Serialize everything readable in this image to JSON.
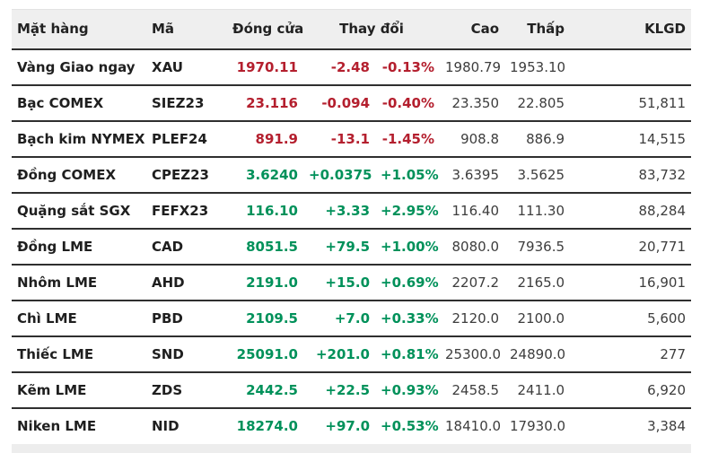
{
  "chart_data": {
    "type": "table",
    "header": {
      "name": "Mặt hàng",
      "code": "Mã",
      "close": "Đóng cửa",
      "change": "Thay đổi",
      "high": "Cao",
      "low": "Thấp",
      "volume": "KLGD"
    },
    "rows": [
      {
        "name": "Vàng Giao ngay",
        "code": "XAU",
        "close": "1970.11",
        "change": "-2.48",
        "change_pct": "-0.13%",
        "high": "1980.79",
        "low": "1953.10",
        "volume": "",
        "direction": "down"
      },
      {
        "name": "Bạc COMEX",
        "code": "SIEZ23",
        "close": "23.116",
        "change": "-0.094",
        "change_pct": "-0.40%",
        "high": "23.350",
        "low": "22.805",
        "volume": "51,811",
        "direction": "down"
      },
      {
        "name": "Bạch kim NYMEX",
        "code": "PLEF24",
        "close": "891.9",
        "change": "-13.1",
        "change_pct": "-1.45%",
        "high": "908.8",
        "low": "886.9",
        "volume": "14,515",
        "direction": "down"
      },
      {
        "name": "Đồng COMEX",
        "code": "CPEZ23",
        "close": "3.6240",
        "change": "+0.0375",
        "change_pct": "+1.05%",
        "high": "3.6395",
        "low": "3.5625",
        "volume": "83,732",
        "direction": "up"
      },
      {
        "name": "Quặng sắt SGX",
        "code": "FEFX23",
        "close": "116.10",
        "change": "+3.33",
        "change_pct": "+2.95%",
        "high": "116.40",
        "low": "111.30",
        "volume": "88,284",
        "direction": "up"
      },
      {
        "name": "Đồng LME",
        "code": "CAD",
        "close": "8051.5",
        "change": "+79.5",
        "change_pct": "+1.00%",
        "high": "8080.0",
        "low": "7936.5",
        "volume": "20,771",
        "direction": "up"
      },
      {
        "name": "Nhôm LME",
        "code": "AHD",
        "close": "2191.0",
        "change": "+15.0",
        "change_pct": "+0.69%",
        "high": "2207.2",
        "low": "2165.0",
        "volume": "16,901",
        "direction": "up"
      },
      {
        "name": "Chì LME",
        "code": "PBD",
        "close": "2109.5",
        "change": "+7.0",
        "change_pct": "+0.33%",
        "high": "2120.0",
        "low": "2100.0",
        "volume": "5,600",
        "direction": "up"
      },
      {
        "name": "Thiếc LME",
        "code": "SND",
        "close": "25091.0",
        "change": "+201.0",
        "change_pct": "+0.81%",
        "high": "25300.0",
        "low": "24890.0",
        "volume": "277",
        "direction": "up"
      },
      {
        "name": "Kẽm LME",
        "code": "ZDS",
        "close": "2442.5",
        "change": "+22.5",
        "change_pct": "+0.93%",
        "high": "2458.5",
        "low": "2411.0",
        "volume": "6,920",
        "direction": "up"
      },
      {
        "name": "Niken LME",
        "code": "NID",
        "close": "18274.0",
        "change": "+97.0",
        "change_pct": "+0.53%",
        "high": "18410.0",
        "low": "17930.0",
        "volume": "3,384",
        "direction": "up"
      }
    ],
    "layout": {
      "grid": "horizontal-row-separators",
      "change_header_spans_two_columns": true
    }
  },
  "colors": {
    "up": "#00915a",
    "down": "#b41f2e",
    "header_bg": "#efefef",
    "border": "#2f2f2f",
    "text": "#1f1f1f",
    "muted_number": "#3d3d3d",
    "footer_strip": "#ededed"
  }
}
